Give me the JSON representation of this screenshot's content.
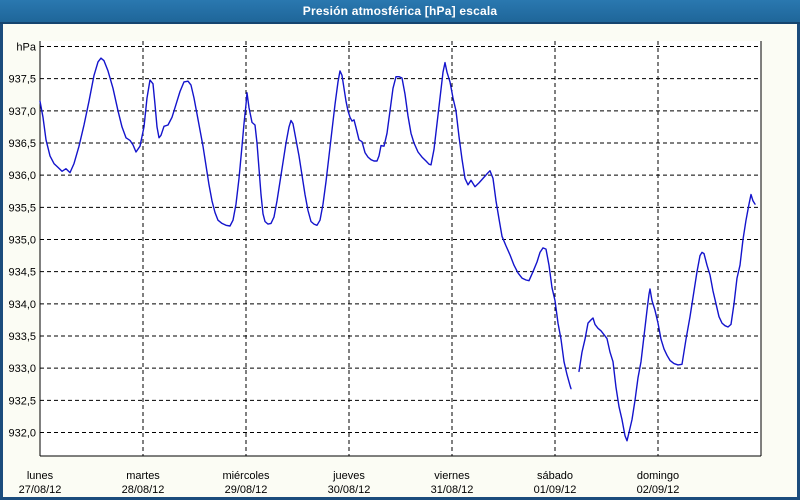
{
  "window": {
    "title": "Presión atmosférica [hPa] escala"
  },
  "colors": {
    "titlebar_blue": "#2373AA",
    "titlebar_border": "#15456F",
    "outer_border_navy": "#1B4C7C",
    "content_background": "#FBFCF4",
    "plot_background": "#FFFFFF",
    "gridline_black": "#000000",
    "line_blue": "#1414CC"
  },
  "chart_data": {
    "type": "line",
    "title": "Presión atmosférica [hPa] escala",
    "ylabel": "hPa",
    "ylim": [
      931.6,
      938.1
    ],
    "grid": "dashed",
    "legend": "none",
    "y_ticks": [
      {
        "value": 938.0,
        "label": "hPa"
      },
      {
        "value": 937.5,
        "label": "937,5"
      },
      {
        "value": 937.0,
        "label": "937,0"
      },
      {
        "value": 936.5,
        "label": "936,5"
      },
      {
        "value": 936.0,
        "label": "936,0"
      },
      {
        "value": 935.5,
        "label": "935,5"
      },
      {
        "value": 935.0,
        "label": "935,0"
      },
      {
        "value": 934.5,
        "label": "934,5"
      },
      {
        "value": 934.0,
        "label": "934,0"
      },
      {
        "value": 933.5,
        "label": "933,5"
      },
      {
        "value": 933.0,
        "label": "933,0"
      },
      {
        "value": 932.5,
        "label": "932,5"
      },
      {
        "value": 932.0,
        "label": "932,0"
      }
    ],
    "x_days": [
      {
        "name": "lunes",
        "date": "27/08/12"
      },
      {
        "name": "martes",
        "date": "28/08/12"
      },
      {
        "name": "miércoles",
        "date": "29/08/12"
      },
      {
        "name": "jueves",
        "date": "30/08/12"
      },
      {
        "name": "viernes",
        "date": "31/08/12"
      },
      {
        "name": "sábado",
        "date": "01/09/12"
      },
      {
        "name": "domingo",
        "date": "02/09/12"
      }
    ],
    "x_axis_note": "x values below are horizontal pixel positions; day boundaries (00:00) fall at 40,143,246,349,452,555,658 and the axis ends at 761",
    "series": [
      {
        "name": "Presión atmosférica",
        "unit": "hPa",
        "color": "#1414CC",
        "segments": [
          [
            [
              40,
              937.15
            ],
            [
              43,
              936.9
            ],
            [
              46,
              936.55
            ],
            [
              50,
              936.3
            ],
            [
              54,
              936.18
            ],
            [
              58,
              936.12
            ],
            [
              62,
              936.06
            ],
            [
              66,
              936.1
            ],
            [
              70,
              936.04
            ],
            [
              74,
              936.18
            ],
            [
              79,
              936.45
            ],
            [
              84,
              936.78
            ],
            [
              89,
              937.15
            ],
            [
              94,
              937.55
            ],
            [
              98,
              937.76
            ],
            [
              101,
              937.82
            ],
            [
              104,
              937.78
            ],
            [
              108,
              937.62
            ],
            [
              113,
              937.35
            ],
            [
              118,
              937.0
            ],
            [
              122,
              936.75
            ],
            [
              126,
              936.58
            ],
            [
              130,
              936.54
            ],
            [
              133,
              936.47
            ],
            [
              136,
              936.36
            ],
            [
              140,
              936.45
            ],
            [
              144,
              936.75
            ],
            [
              147,
              937.2
            ],
            [
              150,
              937.48
            ],
            [
              153,
              937.42
            ],
            [
              155,
              937.1
            ],
            [
              157,
              936.75
            ],
            [
              159,
              936.58
            ],
            [
              161,
              936.62
            ],
            [
              164,
              936.76
            ],
            [
              168,
              936.78
            ],
            [
              172,
              936.9
            ],
            [
              176,
              937.1
            ],
            [
              180,
              937.3
            ],
            [
              184,
              937.45
            ],
            [
              188,
              937.46
            ],
            [
              191,
              937.4
            ],
            [
              194,
              937.2
            ],
            [
              197,
              936.95
            ],
            [
              200,
              936.7
            ],
            [
              203,
              936.45
            ],
            [
              206,
              936.15
            ],
            [
              209,
              935.85
            ],
            [
              212,
              935.6
            ],
            [
              215,
              935.42
            ],
            [
              218,
              935.3
            ],
            [
              222,
              935.25
            ],
            [
              226,
              935.22
            ],
            [
              230,
              935.21
            ],
            [
              233,
              935.3
            ],
            [
              236,
              935.55
            ],
            [
              239,
              935.95
            ],
            [
              242,
              936.45
            ],
            [
              244,
              936.8
            ],
            [
              246,
              937.1
            ],
            [
              247,
              937.28
            ],
            [
              249,
              937.05
            ],
            [
              252,
              936.82
            ],
            [
              255,
              936.78
            ],
            [
              257,
              936.5
            ],
            [
              259,
              936.1
            ],
            [
              261,
              935.7
            ],
            [
              263,
              935.4
            ],
            [
              265,
              935.28
            ],
            [
              268,
              935.24
            ],
            [
              271,
              935.25
            ],
            [
              274,
              935.35
            ],
            [
              277,
              935.6
            ],
            [
              280,
              935.9
            ],
            [
              283,
              936.2
            ],
            [
              286,
              936.5
            ],
            [
              289,
              936.75
            ],
            [
              291,
              936.85
            ],
            [
              293,
              936.8
            ],
            [
              296,
              936.55
            ],
            [
              299,
              936.3
            ],
            [
              302,
              936.0
            ],
            [
              305,
              935.7
            ],
            [
              308,
              935.45
            ],
            [
              311,
              935.28
            ],
            [
              314,
              935.24
            ],
            [
              317,
              935.22
            ],
            [
              320,
              935.3
            ],
            [
              323,
              935.55
            ],
            [
              326,
              935.9
            ],
            [
              329,
              936.3
            ],
            [
              332,
              936.7
            ],
            [
              335,
              937.1
            ],
            [
              338,
              937.45
            ],
            [
              340,
              937.62
            ],
            [
              342,
              937.55
            ],
            [
              344,
              937.35
            ],
            [
              346,
              937.15
            ],
            [
              348,
              937.0
            ],
            [
              350,
              936.9
            ],
            [
              352,
              936.84
            ],
            [
              354,
              936.86
            ],
            [
              356,
              936.74
            ],
            [
              359,
              936.55
            ],
            [
              362,
              936.52
            ],
            [
              365,
              936.35
            ],
            [
              368,
              936.28
            ],
            [
              371,
              936.24
            ],
            [
              374,
              936.22
            ],
            [
              377,
              936.22
            ],
            [
              379,
              936.3
            ],
            [
              381,
              936.46
            ],
            [
              384,
              936.45
            ],
            [
              387,
              936.65
            ],
            [
              390,
              937.0
            ],
            [
              393,
              937.35
            ],
            [
              396,
              937.53
            ],
            [
              399,
              937.53
            ],
            [
              402,
              937.51
            ],
            [
              405,
              937.26
            ],
            [
              408,
              936.92
            ],
            [
              411,
              936.65
            ],
            [
              414,
              936.5
            ],
            [
              418,
              936.36
            ],
            [
              422,
              936.28
            ],
            [
              426,
              936.22
            ],
            [
              429,
              936.17
            ],
            [
              431,
              936.16
            ],
            [
              434,
              936.4
            ],
            [
              437,
              936.8
            ],
            [
              440,
              937.2
            ],
            [
              443,
              937.6
            ],
            [
              445,
              937.75
            ],
            [
              447,
              937.6
            ],
            [
              450,
              937.45
            ],
            [
              453,
              937.2
            ],
            [
              456,
              937.0
            ],
            [
              459,
              936.6
            ],
            [
              462,
              936.25
            ],
            [
              465,
              935.95
            ],
            [
              468,
              935.85
            ],
            [
              471,
              935.92
            ],
            [
              475,
              935.82
            ],
            [
              479,
              935.88
            ],
            [
              483,
              935.95
            ],
            [
              487,
              936.02
            ],
            [
              490,
              936.07
            ],
            [
              493,
              935.95
            ],
            [
              496,
              935.6
            ],
            [
              499,
              935.32
            ],
            [
              502,
              935.05
            ],
            [
              506,
              934.9
            ],
            [
              510,
              934.76
            ],
            [
              514,
              934.6
            ],
            [
              518,
              934.48
            ],
            [
              522,
              934.4
            ],
            [
              526,
              934.37
            ],
            [
              529,
              934.36
            ],
            [
              533,
              934.5
            ],
            [
              537,
              934.65
            ],
            [
              540,
              934.8
            ],
            [
              543,
              934.87
            ],
            [
              546,
              934.85
            ],
            [
              549,
              934.6
            ],
            [
              552,
              934.25
            ],
            [
              555,
              934.05
            ],
            [
              558,
              933.7
            ],
            [
              561,
              933.45
            ],
            [
              564,
              933.1
            ],
            [
              567,
              932.9
            ],
            [
              570,
              932.73
            ],
            [
              571,
              932.68
            ]
          ],
          [
            [
              579,
              932.95
            ],
            [
              582,
              933.25
            ],
            [
              585,
              933.45
            ],
            [
              588,
              933.7
            ],
            [
              591,
              933.75
            ],
            [
              593,
              933.78
            ],
            [
              595,
              933.68
            ],
            [
              598,
              933.62
            ],
            [
              601,
              933.58
            ],
            [
              604,
              933.52
            ],
            [
              607,
              933.46
            ],
            [
              610,
              933.25
            ],
            [
              613,
              933.1
            ],
            [
              616,
              932.7
            ],
            [
              619,
              932.4
            ],
            [
              622,
              932.2
            ],
            [
              625,
              931.95
            ],
            [
              627,
              931.87
            ],
            [
              629,
              932.0
            ],
            [
              632,
              932.2
            ],
            [
              635,
              932.5
            ],
            [
              638,
              932.85
            ],
            [
              641,
              933.1
            ],
            [
              644,
              933.5
            ],
            [
              647,
              933.9
            ],
            [
              649,
              934.15
            ],
            [
              650,
              934.23
            ],
            [
              652,
              934.05
            ],
            [
              655,
              933.9
            ],
            [
              658,
              933.7
            ],
            [
              661,
              933.45
            ],
            [
              664,
              933.3
            ],
            [
              667,
              933.2
            ],
            [
              670,
              933.12
            ],
            [
              674,
              933.07
            ],
            [
              678,
              933.05
            ],
            [
              682,
              933.06
            ],
            [
              686,
              933.45
            ],
            [
              690,
              933.8
            ],
            [
              694,
              934.2
            ],
            [
              697,
              934.5
            ],
            [
              700,
              934.75
            ],
            [
              702,
              934.8
            ],
            [
              704,
              934.78
            ],
            [
              707,
              934.6
            ],
            [
              710,
              934.45
            ],
            [
              713,
              934.2
            ],
            [
              716,
              934.0
            ],
            [
              719,
              933.8
            ],
            [
              722,
              933.7
            ],
            [
              725,
              933.66
            ],
            [
              728,
              933.64
            ],
            [
              731,
              933.68
            ],
            [
              734,
              934.0
            ],
            [
              737,
              934.4
            ],
            [
              740,
              934.6
            ],
            [
              743,
              935.0
            ],
            [
              746,
              935.3
            ],
            [
              749,
              935.55
            ],
            [
              751,
              935.7
            ],
            [
              753,
              935.6
            ],
            [
              755,
              935.55
            ]
          ]
        ]
      }
    ]
  }
}
